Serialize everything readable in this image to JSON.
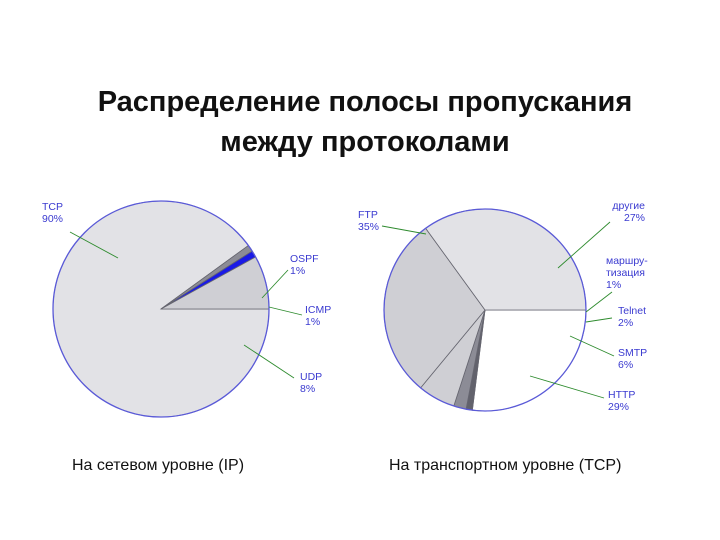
{
  "title": {
    "line1": "Распределение полосы пропускания",
    "line2": "между протоколами"
  },
  "colors": {
    "slice_light": "#e2e2e6",
    "slice_white": "#ffffff",
    "slice_mid": "#cfcfd4",
    "slice_dark": "#8c8c96",
    "slice_darker": "#62626c",
    "slice_blue": "#1a1ae6",
    "outline": "#5a5ad8",
    "leader": "#2e8b2e",
    "label": "#3a3ad0"
  },
  "chart_data": [
    {
      "type": "pie",
      "caption": "На сетевом уровне (IP)",
      "slices": [
        {
          "name": "TCP",
          "value": 90,
          "label": "90%",
          "color": "slice_light"
        },
        {
          "name": "OSPF",
          "value": 1,
          "label": "1%",
          "color": "slice_dark"
        },
        {
          "name": "ICMP",
          "value": 1,
          "label": "1%",
          "color": "slice_blue"
        },
        {
          "name": "UDP",
          "value": 8,
          "label": "8%",
          "color": "slice_mid"
        }
      ]
    },
    {
      "type": "pie",
      "caption": "На транспортном уровне (TCP)",
      "slices": [
        {
          "name": "другие",
          "value": 27,
          "label": "27%",
          "color": "slice_white"
        },
        {
          "name": "маршру-тизация",
          "lines": [
            "маршру-",
            "тизация"
          ],
          "value": 1,
          "label": "1%",
          "color": "slice_darker"
        },
        {
          "name": "Telnet",
          "value": 2,
          "label": "2%",
          "color": "slice_dark"
        },
        {
          "name": "SMTP",
          "value": 6,
          "label": "6%",
          "color": "slice_mid"
        },
        {
          "name": "HTTP",
          "value": 29,
          "label": "29%",
          "color": "slice_mid"
        },
        {
          "name": "FTP",
          "value": 35,
          "label": "35%",
          "color": "slice_light"
        }
      ]
    }
  ]
}
